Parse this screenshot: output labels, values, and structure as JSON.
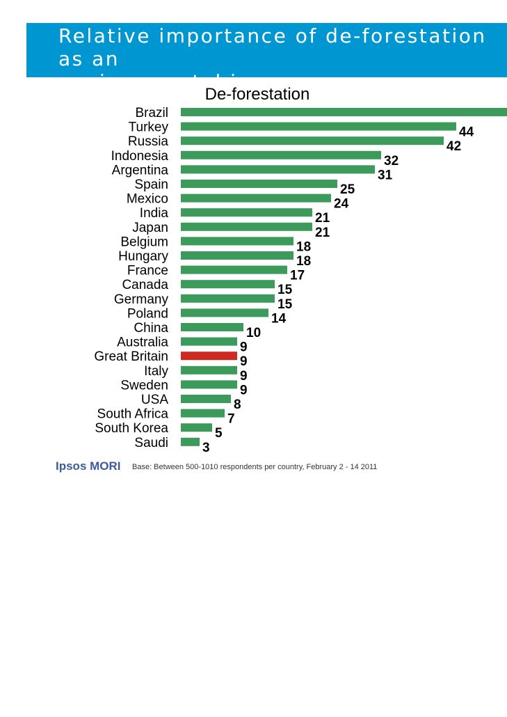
{
  "header": {
    "title": "Relative importance of de-forestation as an\nenvironmental issue",
    "bg_color": "#0096d1"
  },
  "chart_data": {
    "type": "bar",
    "orientation": "horizontal",
    "title": "De-forestation",
    "categories": [
      "Brazil",
      "Turkey",
      "Russia",
      "Indonesia",
      "Argentina",
      "Spain",
      "Mexico",
      "India",
      "Japan",
      "Belgium",
      "Hungary",
      "France",
      "Canada",
      "Germany",
      "Poland",
      "China",
      "Australia",
      "Great Britain",
      "Italy",
      "Sweden",
      "USA",
      "South Africa",
      "South Korea",
      "Saudi"
    ],
    "values": [
      53,
      44,
      42,
      32,
      31,
      25,
      24,
      21,
      21,
      18,
      18,
      17,
      15,
      15,
      14,
      10,
      9,
      9,
      9,
      9,
      8,
      7,
      5,
      3
    ],
    "value_labels": [
      "",
      "44",
      "42",
      "32",
      "31",
      "25",
      "24",
      "21",
      "21",
      "18",
      "18",
      "17",
      "15",
      "15",
      "14",
      "10",
      "9",
      "9",
      "9",
      "9",
      "8",
      "7",
      "5",
      "3"
    ],
    "highlight": "Great Britain",
    "bar_color": "#3c9a5a",
    "highlight_color": "#cf2a1f",
    "xlim": [
      0,
      53
    ]
  },
  "footer": {
    "logo_text": "Ipsos MORI",
    "base_note": "Base: Between 500-1010 respondents per country, February 2 - 14 2011"
  }
}
